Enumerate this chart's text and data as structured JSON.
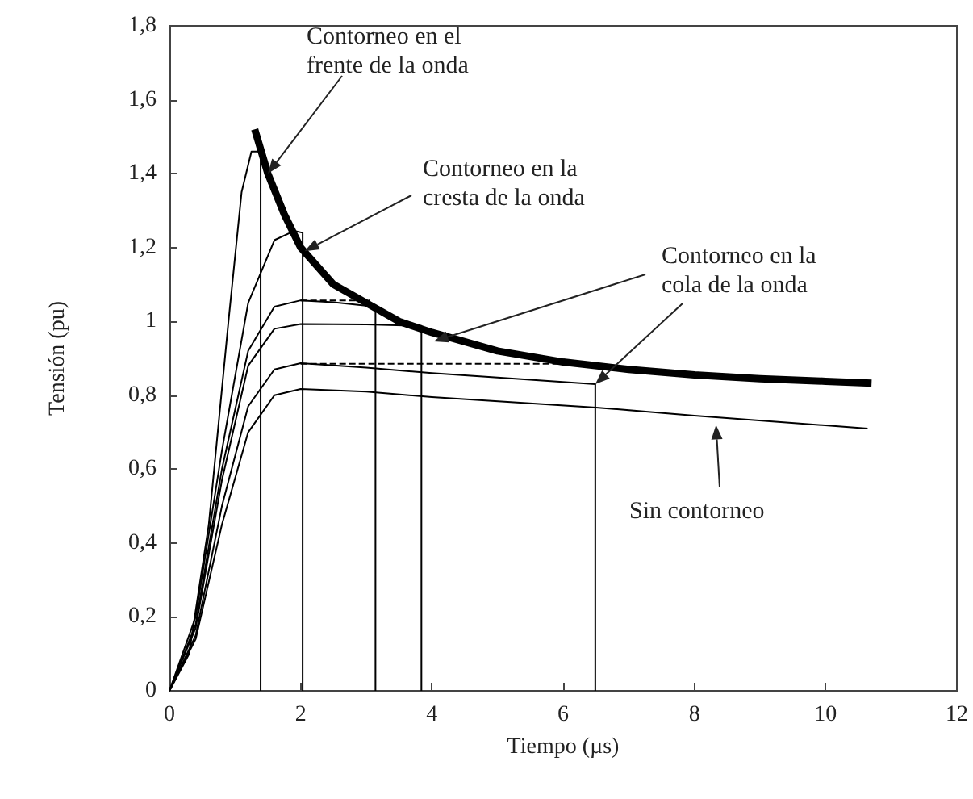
{
  "chart_data": {
    "type": "line",
    "xlabel": "Tiempo (µs)",
    "ylabel": "Tensión (pu)",
    "xlim": [
      0,
      12
    ],
    "xticks": [
      0,
      2,
      4,
      6,
      8,
      10,
      12
    ],
    "ylim": [
      0,
      1.8
    ],
    "yticks": [
      0,
      {
        "value": 0.2,
        "label": "0,2"
      },
      {
        "value": 0.4,
        "label": "0,4"
      },
      {
        "value": 0.6,
        "label": "0,6"
      },
      {
        "value": 0.8,
        "label": "0,8"
      },
      1,
      {
        "value": 1.2,
        "label": "1,2"
      },
      {
        "value": 1.4,
        "label": "1,4"
      },
      {
        "value": 1.6,
        "label": "1,6"
      },
      {
        "value": 1.8,
        "label": "1,8"
      }
    ],
    "grid": false,
    "marker": "none",
    "series": [
      {
        "color": "#000000",
        "x": [
          0,
          0.3,
          0.6,
          0.9,
          1.1,
          1.25,
          1.39,
          1.39
        ],
        "values": [
          0,
          0.1,
          0.45,
          1.0,
          1.35,
          1.46,
          1.46,
          0
        ]
      },
      {
        "color": "#000000",
        "x": [
          0,
          0.4,
          0.8,
          1.2,
          1.6,
          1.9,
          2.03,
          2.03
        ],
        "values": [
          0,
          0.2,
          0.65,
          1.05,
          1.22,
          1.245,
          1.24,
          0
        ]
      },
      {
        "color": "#000000",
        "x": [
          0,
          0.4,
          0.8,
          1.2,
          1.6,
          2,
          2.5,
          3.14,
          3.14
        ],
        "values": [
          0,
          0.18,
          0.6,
          0.92,
          1.04,
          1.057,
          1.052,
          1.04,
          0
        ]
      },
      {
        "color": "#000000",
        "x": [
          0,
          0.4,
          0.8,
          1.2,
          1.6,
          2,
          3,
          3.84,
          3.84
        ],
        "values": [
          0,
          0.17,
          0.57,
          0.88,
          0.98,
          0.993,
          0.992,
          0.988,
          0
        ]
      },
      {
        "color": "#000000",
        "x": [
          0,
          0.4,
          0.8,
          1.2,
          1.6,
          2,
          3,
          4,
          5,
          6.49,
          6.49
        ],
        "values": [
          0,
          0.15,
          0.5,
          0.77,
          0.87,
          0.887,
          0.875,
          0.86,
          0.848,
          0.83,
          0
        ]
      },
      {
        "color": "#000000",
        "x": [
          0,
          0.4,
          0.8,
          1.2,
          1.6,
          2,
          3,
          4,
          6.5,
          8,
          10.64
        ],
        "values": [
          0,
          0.14,
          0.45,
          0.7,
          0.8,
          0.817,
          0.81,
          0.795,
          0.767,
          0.745,
          0.71
        ]
      },
      {
        "color": "#000000",
        "line_style": "dashed",
        "x": [
          2,
          3.05
        ],
        "values": [
          1.057,
          1.057
        ]
      },
      {
        "color": "#000000",
        "line_style": "dashed",
        "x": [
          2,
          6.49
        ],
        "values": [
          0.885,
          0.885
        ]
      },
      {
        "color": "#000000",
        "x": [
          1.3,
          1.5,
          1.75,
          2,
          2.5,
          3,
          3.5,
          4,
          5,
          6,
          7,
          8,
          9,
          10,
          10.7
        ],
        "values": [
          1.52,
          1.4,
          1.29,
          1.2,
          1.1,
          1.05,
          1.0,
          0.97,
          0.92,
          0.89,
          0.87,
          0.855,
          0.845,
          0.838,
          0.833
        ]
      }
    ],
    "annotations": [
      "Contorneo en el\nfrente de la onda",
      {
        "text": "Contorneo en la\ncresta de la onda",
        "x": 2.06,
        "y": 1.19
      },
      {
        "text": "Contorneo en la\ncola de la onda",
        "x": 4.03,
        "y": 0.946
      },
      {
        "text": "Sin contorneo",
        "x": 8.33,
        "y": 0.72
      }
    ]
  }
}
